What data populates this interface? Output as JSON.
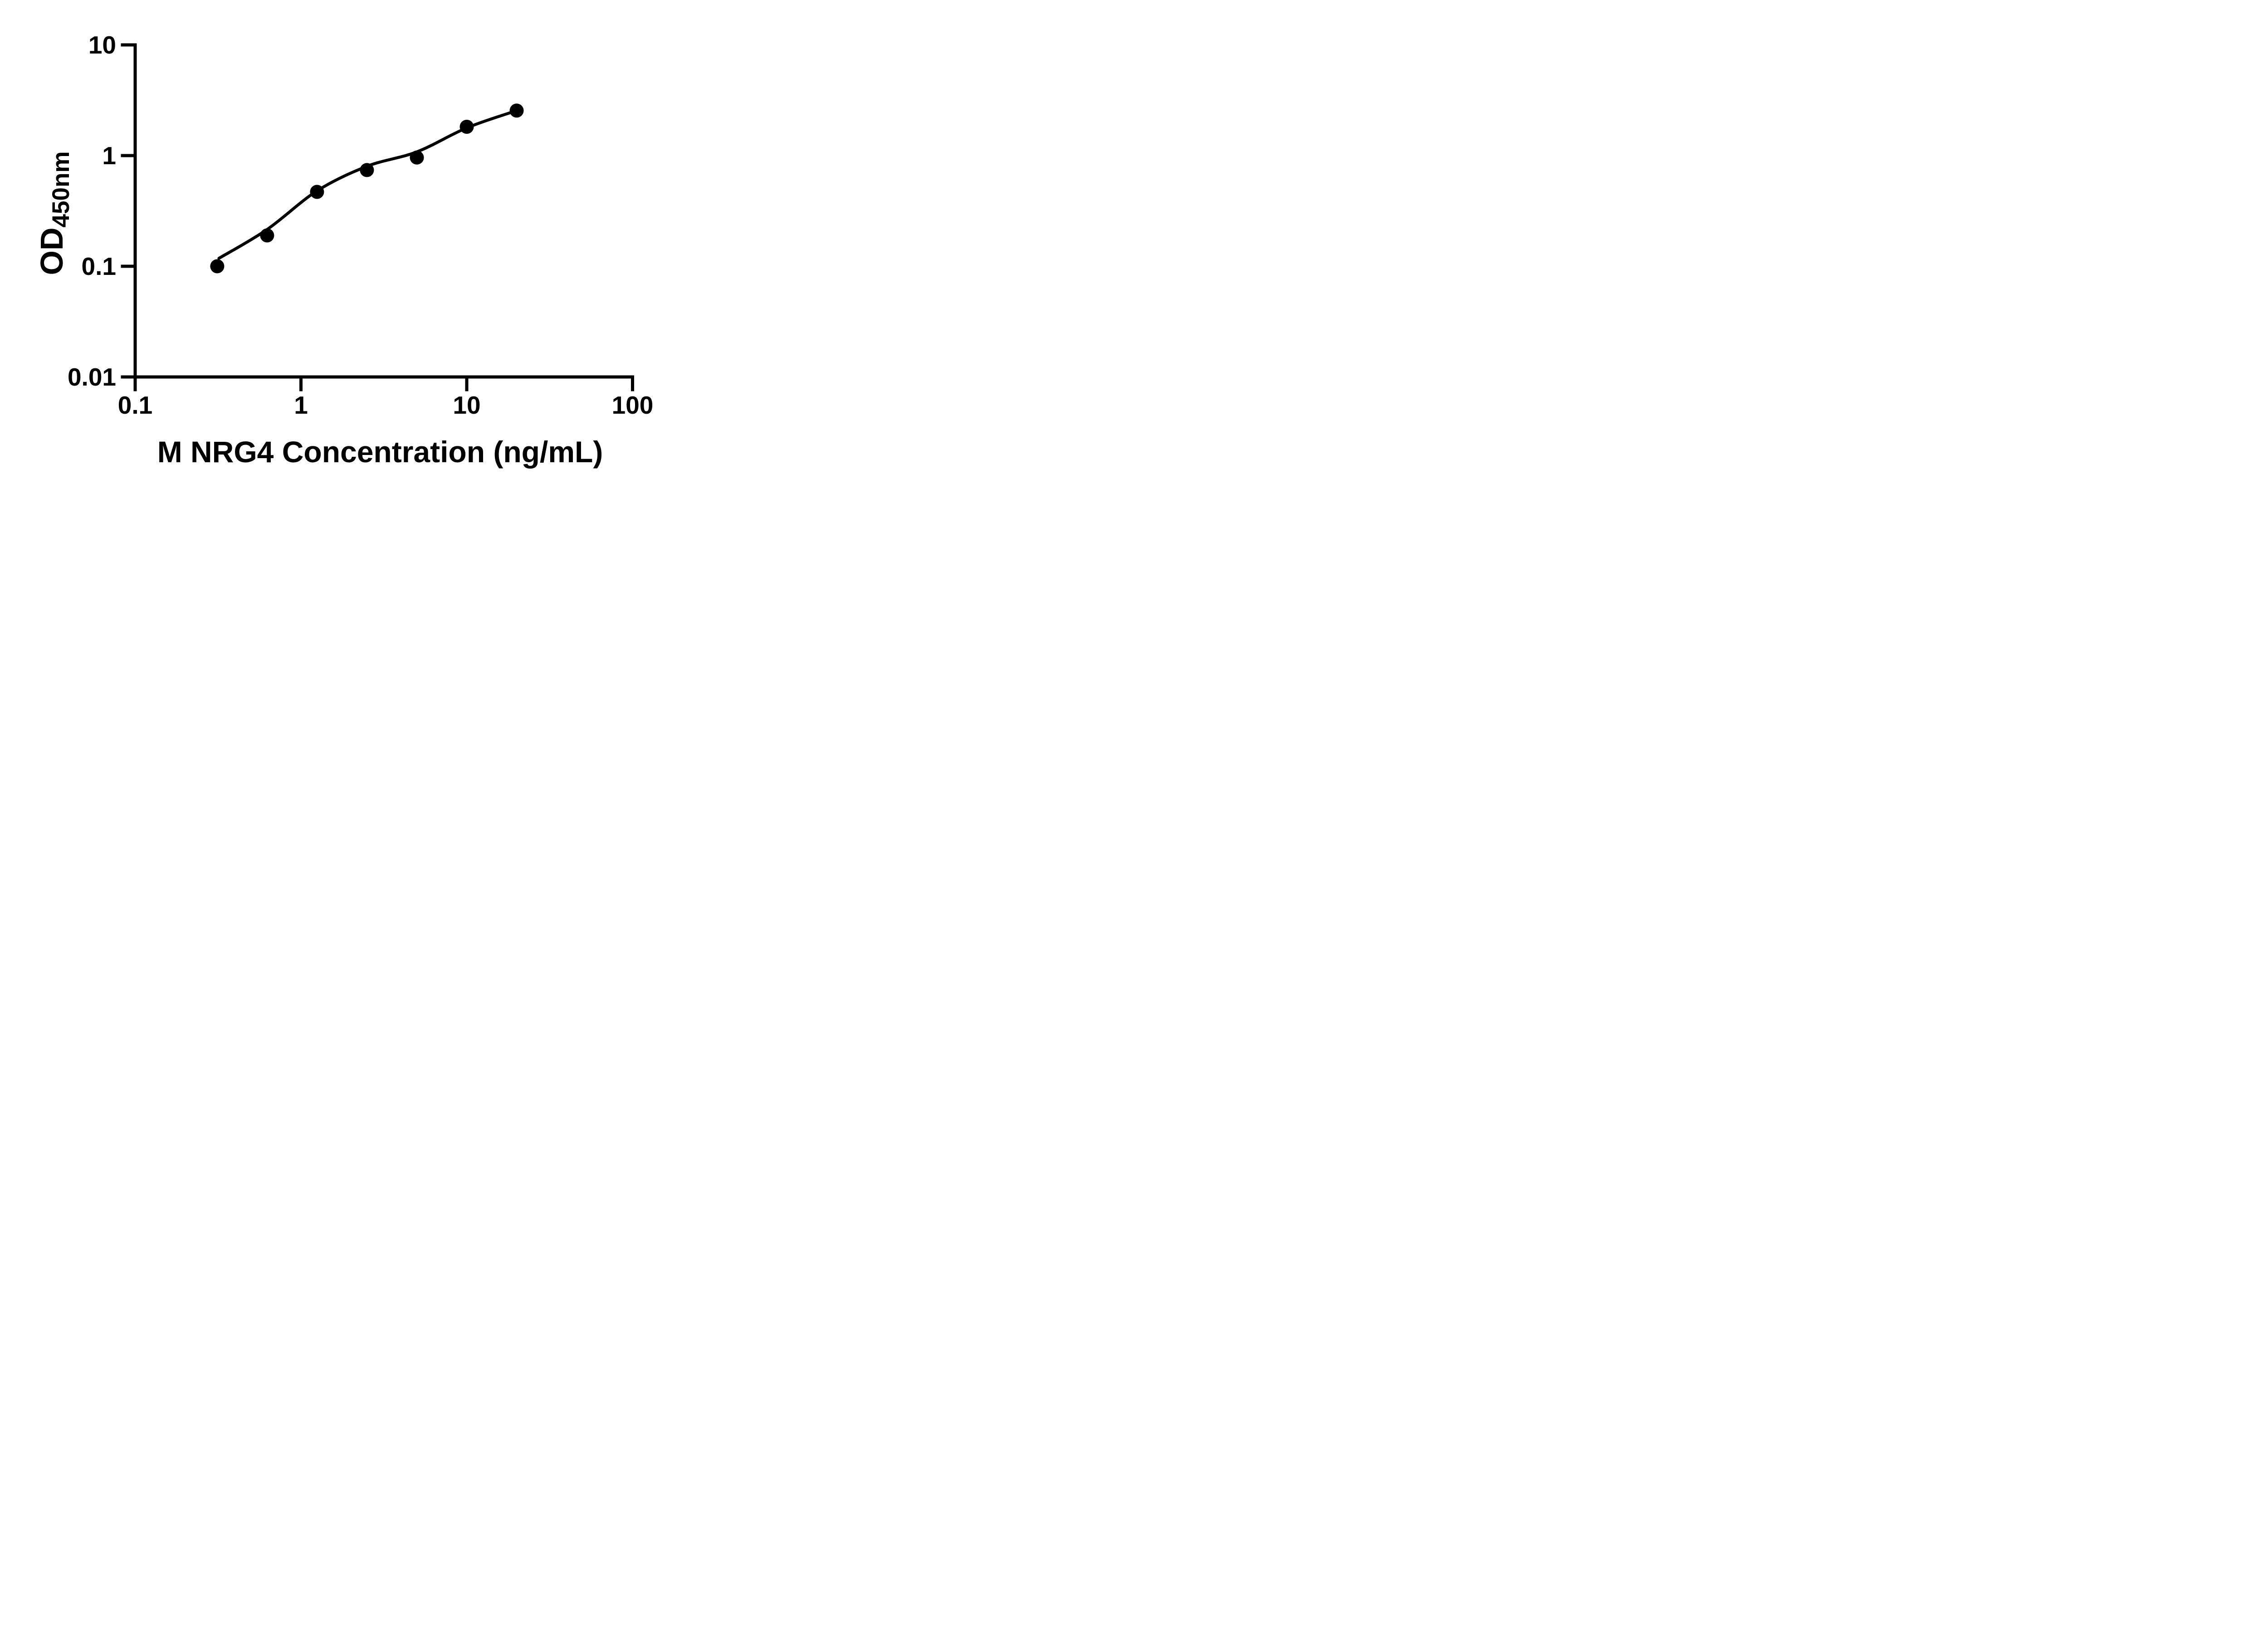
{
  "figure": {
    "background_color": "#ffffff",
    "ink_color": "#000000"
  },
  "chart_data": {
    "type": "scatter",
    "title": "",
    "xlabel": "M NRG4 Concentration (ng/mL)",
    "ylabel": "OD450nm",
    "ylabel_main": "OD",
    "ylabel_sub": "450nm",
    "x_scale": "log",
    "y_scale": "log",
    "xlim": [
      0.1,
      100
    ],
    "ylim": [
      0.01,
      10
    ],
    "grid": false,
    "legend": null,
    "x_ticks": [
      {
        "value": 0.1,
        "label": "0.1"
      },
      {
        "value": 1,
        "label": "1"
      },
      {
        "value": 10,
        "label": "10"
      },
      {
        "value": 100,
        "label": "100"
      }
    ],
    "y_ticks": [
      {
        "value": 10,
        "label": "10"
      },
      {
        "value": 1,
        "label": "1"
      },
      {
        "value": 0.1,
        "label": "0.1"
      },
      {
        "value": 0.01,
        "label": "0.01"
      }
    ],
    "series": [
      {
        "name": "standard-points",
        "type": "scatter",
        "marker": "circle",
        "color": "#000000",
        "points": [
          {
            "x": 0.3125,
            "y": 0.1
          },
          {
            "x": 0.625,
            "y": 0.19
          },
          {
            "x": 1.25,
            "y": 0.47
          },
          {
            "x": 2.5,
            "y": 0.74
          },
          {
            "x": 5,
            "y": 0.96
          },
          {
            "x": 10,
            "y": 1.82
          },
          {
            "x": 20,
            "y": 2.55
          }
        ]
      },
      {
        "name": "fit-curve",
        "type": "line",
        "color": "#000000",
        "points": [
          {
            "x": 0.32,
            "y": 0.118
          },
          {
            "x": 0.625,
            "y": 0.215
          },
          {
            "x": 1.25,
            "y": 0.48
          },
          {
            "x": 2.5,
            "y": 0.8
          },
          {
            "x": 5,
            "y": 1.08
          },
          {
            "x": 10,
            "y": 1.78
          },
          {
            "x": 20,
            "y": 2.55
          }
        ]
      }
    ]
  }
}
